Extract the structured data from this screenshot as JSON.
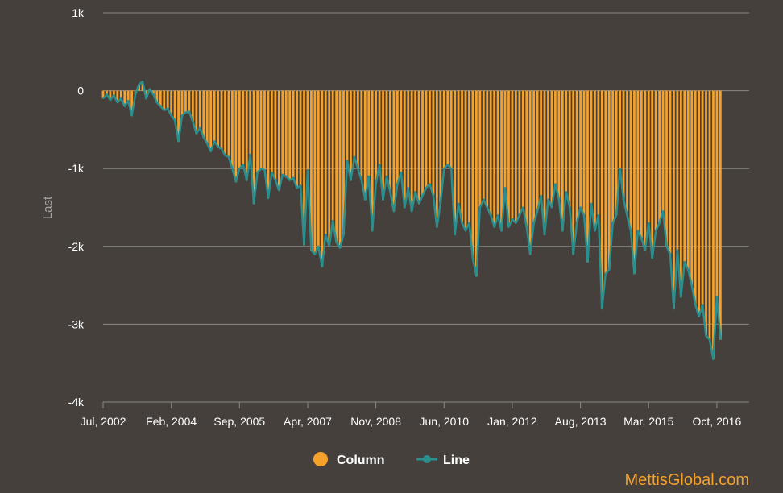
{
  "chart_data": {
    "type": "bar",
    "ylabel": "Last",
    "ylim": [
      -4000,
      1000
    ],
    "yticks": [
      1000,
      0,
      -1000,
      -2000,
      -3000,
      -4000
    ],
    "ytick_labels": [
      "1k",
      "0",
      "-1k",
      "-2k",
      "-3k",
      "-4k"
    ],
    "xlim": [
      "2002-07",
      "2017-07"
    ],
    "x_tick_labels": [
      "Jul, 2002",
      "Feb, 2004",
      "Sep, 2005",
      "Apr, 2007",
      "Nov, 2008",
      "Jun, 2010",
      "Jan, 2012",
      "Aug, 2013",
      "Mar, 2015",
      "Oct, 2016"
    ],
    "x_tick_dates": [
      "2002-07",
      "2004-02",
      "2005-09",
      "2007-04",
      "2008-11",
      "2010-06",
      "2012-01",
      "2013-08",
      "2015-03",
      "2016-10"
    ],
    "grid": true,
    "legend_position": "bottom",
    "colors": {
      "column": "#f5a12a",
      "line": "#2a8f8f",
      "grid": "#8c8884",
      "background": "#45403c"
    },
    "series": [
      {
        "name": "Column",
        "type": "bar"
      },
      {
        "name": "Line",
        "type": "line"
      }
    ],
    "points": [
      [
        "2002-07",
        -100
      ],
      [
        "2002-08",
        -50
      ],
      [
        "2002-09",
        -120
      ],
      [
        "2002-10",
        -60
      ],
      [
        "2002-11",
        -150
      ],
      [
        "2002-12",
        -100
      ],
      [
        "2003-01",
        -200
      ],
      [
        "2003-02",
        -130
      ],
      [
        "2003-03",
        -320
      ],
      [
        "2003-04",
        -50
      ],
      [
        "2003-05",
        80
      ],
      [
        "2003-06",
        120
      ],
      [
        "2003-07",
        -100
      ],
      [
        "2003-08",
        20
      ],
      [
        "2003-09",
        -50
      ],
      [
        "2003-10",
        -150
      ],
      [
        "2003-11",
        -200
      ],
      [
        "2003-12",
        -250
      ],
      [
        "2004-01",
        -230
      ],
      [
        "2004-02",
        -320
      ],
      [
        "2004-03",
        -380
      ],
      [
        "2004-04",
        -650
      ],
      [
        "2004-05",
        -320
      ],
      [
        "2004-06",
        -280
      ],
      [
        "2004-07",
        -270
      ],
      [
        "2004-08",
        -400
      ],
      [
        "2004-09",
        -550
      ],
      [
        "2004-10",
        -480
      ],
      [
        "2004-11",
        -600
      ],
      [
        "2004-12",
        -680
      ],
      [
        "2005-01",
        -780
      ],
      [
        "2005-02",
        -650
      ],
      [
        "2005-03",
        -720
      ],
      [
        "2005-04",
        -750
      ],
      [
        "2005-05",
        -830
      ],
      [
        "2005-06",
        -850
      ],
      [
        "2005-07",
        -1000
      ],
      [
        "2005-08",
        -1170
      ],
      [
        "2005-09",
        -1000
      ],
      [
        "2005-10",
        -950
      ],
      [
        "2005-11",
        -1150
      ],
      [
        "2005-12",
        -820
      ],
      [
        "2006-01",
        -1450
      ],
      [
        "2006-02",
        -1050
      ],
      [
        "2006-03",
        -1000
      ],
      [
        "2006-04",
        -1020
      ],
      [
        "2006-05",
        -1380
      ],
      [
        "2006-06",
        -1050
      ],
      [
        "2006-07",
        -1150
      ],
      [
        "2006-08",
        -1280
      ],
      [
        "2006-09",
        -1080
      ],
      [
        "2006-10",
        -1100
      ],
      [
        "2006-11",
        -1150
      ],
      [
        "2006-12",
        -1120
      ],
      [
        "2007-01",
        -1250
      ],
      [
        "2007-02",
        -1220
      ],
      [
        "2007-03",
        -1980
      ],
      [
        "2007-04",
        -1020
      ],
      [
        "2007-05",
        -2050
      ],
      [
        "2007-06",
        -2100
      ],
      [
        "2007-07",
        -2000
      ],
      [
        "2007-08",
        -2260
      ],
      [
        "2007-09",
        -1850
      ],
      [
        "2007-10",
        -2000
      ],
      [
        "2007-11",
        -1670
      ],
      [
        "2007-12",
        -1950
      ],
      [
        "2008-01",
        -2020
      ],
      [
        "2008-02",
        -1850
      ],
      [
        "2008-03",
        -900
      ],
      [
        "2008-04",
        -1150
      ],
      [
        "2008-05",
        -850
      ],
      [
        "2008-06",
        -1000
      ],
      [
        "2008-07",
        -1150
      ],
      [
        "2008-08",
        -1400
      ],
      [
        "2008-09",
        -1100
      ],
      [
        "2008-10",
        -1800
      ],
      [
        "2008-11",
        -1200
      ],
      [
        "2008-12",
        -950
      ],
      [
        "2009-01",
        -1400
      ],
      [
        "2009-02",
        -1100
      ],
      [
        "2009-03",
        -1300
      ],
      [
        "2009-04",
        -1550
      ],
      [
        "2009-05",
        -1200
      ],
      [
        "2009-06",
        -1050
      ],
      [
        "2009-07",
        -1500
      ],
      [
        "2009-08",
        -1250
      ],
      [
        "2009-09",
        -1550
      ],
      [
        "2009-10",
        -1300
      ],
      [
        "2009-11",
        -1450
      ],
      [
        "2009-12",
        -1350
      ],
      [
        "2010-01",
        -1250
      ],
      [
        "2010-02",
        -1200
      ],
      [
        "2010-03",
        -1350
      ],
      [
        "2010-04",
        -1750
      ],
      [
        "2010-05",
        -1450
      ],
      [
        "2010-06",
        -1000
      ],
      [
        "2010-07",
        -950
      ],
      [
        "2010-08",
        -1000
      ],
      [
        "2010-09",
        -1850
      ],
      [
        "2010-10",
        -1450
      ],
      [
        "2010-11",
        -1700
      ],
      [
        "2010-12",
        -1800
      ],
      [
        "2011-01",
        -1700
      ],
      [
        "2011-02",
        -2150
      ],
      [
        "2011-03",
        -2380
      ],
      [
        "2011-04",
        -1500
      ],
      [
        "2011-05",
        -1400
      ],
      [
        "2011-06",
        -1500
      ],
      [
        "2011-07",
        -1600
      ],
      [
        "2011-08",
        -1750
      ],
      [
        "2011-09",
        -1600
      ],
      [
        "2011-10",
        -1800
      ],
      [
        "2011-11",
        -1250
      ],
      [
        "2011-12",
        -1750
      ],
      [
        "2012-01",
        -1650
      ],
      [
        "2012-02",
        -1700
      ],
      [
        "2012-03",
        -1600
      ],
      [
        "2012-04",
        -1500
      ],
      [
        "2012-05",
        -1750
      ],
      [
        "2012-06",
        -2100
      ],
      [
        "2012-07",
        -1700
      ],
      [
        "2012-08",
        -1550
      ],
      [
        "2012-09",
        -1350
      ],
      [
        "2012-10",
        -1850
      ],
      [
        "2012-11",
        -1400
      ],
      [
        "2012-12",
        -1500
      ],
      [
        "2013-01",
        -1200
      ],
      [
        "2013-02",
        -1400
      ],
      [
        "2013-03",
        -1800
      ],
      [
        "2013-04",
        -1300
      ],
      [
        "2013-05",
        -1500
      ],
      [
        "2013-06",
        -2100
      ],
      [
        "2013-07",
        -1700
      ],
      [
        "2013-08",
        -1500
      ],
      [
        "2013-09",
        -1600
      ],
      [
        "2013-10",
        -2200
      ],
      [
        "2013-11",
        -1450
      ],
      [
        "2013-12",
        -1800
      ],
      [
        "2014-01",
        -1600
      ],
      [
        "2014-02",
        -2800
      ],
      [
        "2014-03",
        -2350
      ],
      [
        "2014-04",
        -2300
      ],
      [
        "2014-05",
        -1700
      ],
      [
        "2014-06",
        -1600
      ],
      [
        "2014-07",
        -1000
      ],
      [
        "2014-08",
        -1400
      ],
      [
        "2014-09",
        -1600
      ],
      [
        "2014-10",
        -1800
      ],
      [
        "2014-11",
        -2350
      ],
      [
        "2014-12",
        -1800
      ],
      [
        "2015-01",
        -1900
      ],
      [
        "2015-02",
        -2050
      ],
      [
        "2015-03",
        -1700
      ],
      [
        "2015-04",
        -2150
      ],
      [
        "2015-05",
        -1800
      ],
      [
        "2015-06",
        -1700
      ],
      [
        "2015-07",
        -1550
      ],
      [
        "2015-08",
        -2000
      ],
      [
        "2015-09",
        -2100
      ],
      [
        "2015-10",
        -2800
      ],
      [
        "2015-11",
        -2050
      ],
      [
        "2015-12",
        -2650
      ],
      [
        "2016-01",
        -2200
      ],
      [
        "2016-02",
        -2300
      ],
      [
        "2016-03",
        -2500
      ],
      [
        "2016-04",
        -2750
      ],
      [
        "2016-05",
        -2900
      ],
      [
        "2016-06",
        -2750
      ],
      [
        "2016-07",
        -3150
      ],
      [
        "2016-08",
        -3200
      ],
      [
        "2016-09",
        -3450
      ],
      [
        "2016-10",
        -2650
      ],
      [
        "2016-11",
        -3200
      ]
    ]
  },
  "watermark": "MettisGlobal.com"
}
